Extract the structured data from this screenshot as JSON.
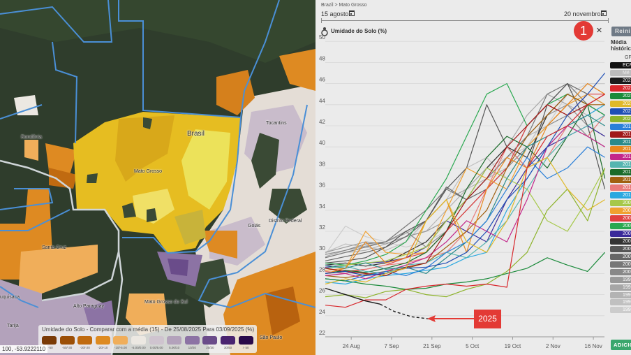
{
  "map": {
    "labels": {
      "brasil": "Brasil",
      "mato_grosso": "Mato Grosso",
      "rondonia": "Rondônia",
      "tocantins": "Tocantins",
      "santa_cruz": "Santa Cruz",
      "goias": "Goiás",
      "distrito_federal": "Distrito Federal",
      "chuquisaca": "uquisaca",
      "alto_paraguay": "Alto Paraguay",
      "mato_grosso_do_sul": "Mato Grosso do Sul",
      "tarija": "Tarija",
      "sao_paulo": "São Paulo"
    },
    "coordinates": "100, -53.9222110",
    "legend": {
      "title": "Umidade do Solo - Comparar com a média (15) - De 25/08/2025 Para 03/09/2025 (%)",
      "classes": [
        {
          "label": "< -50",
          "color": "#7a3a06"
        },
        {
          "label": "-50/-30",
          "color": "#9c4f08"
        },
        {
          "label": "-30/-20",
          "color": "#c06a10"
        },
        {
          "label": "-20/-10",
          "color": "#de8a22"
        },
        {
          "label": "-10/-5.00",
          "color": "#f0ae5a"
        },
        {
          "label": "-5.00/0.00",
          "color": "#ece8e2"
        },
        {
          "label": "0.00/5.00",
          "color": "#cfc4cf"
        },
        {
          "label": "5.00/10",
          "color": "#b3a2bb"
        },
        {
          "label": "10/20",
          "color": "#8c73a4"
        },
        {
          "label": "20/30",
          "color": "#6a4c8a"
        },
        {
          "label": "30/50",
          "color": "#4a2470"
        },
        {
          "label": "> 50",
          "color": "#2a0a4a"
        }
      ]
    }
  },
  "panel": {
    "breadcrumb": "Brazil > Mato Grosso",
    "start_date": "15 agosto",
    "end_date": "20 novembro",
    "chart_title": "Umidade do Solo (%)",
    "annotation_number": "1",
    "close_icon": "×",
    "reset_button": "Reini",
    "historical_label_1": "Média",
    "historical_label_2": "histórica",
    "legend_header": "GF",
    "add_button": "ADICIO",
    "annotation_2025": "2025",
    "legend_items": [
      {
        "label": "ECM",
        "color": "#111111"
      },
      {
        "label": "Mé",
        "color": "#bdbdbd"
      },
      {
        "label": "202",
        "color": "#1b1b1b"
      },
      {
        "label": "202",
        "color": "#d7262b"
      },
      {
        "label": "202",
        "color": "#1a8a3a"
      },
      {
        "label": "202",
        "color": "#e0b92a"
      },
      {
        "label": "202",
        "color": "#1f4fb5"
      },
      {
        "label": "202",
        "color": "#8db32b"
      },
      {
        "label": "201",
        "color": "#2a7fd8"
      },
      {
        "label": "201",
        "color": "#a01818"
      },
      {
        "label": "201",
        "color": "#2a8a8a"
      },
      {
        "label": "201",
        "color": "#e8871e"
      },
      {
        "label": "201",
        "color": "#c3268a"
      },
      {
        "label": "201",
        "color": "#55b5b0"
      },
      {
        "label": "201",
        "color": "#1a6b2a"
      },
      {
        "label": "201",
        "color": "#a06010"
      },
      {
        "label": "201",
        "color": "#e87a7a"
      },
      {
        "label": "201",
        "color": "#2aa8e0"
      },
      {
        "label": "200",
        "color": "#a6c84a"
      },
      {
        "label": "200",
        "color": "#f0a030"
      },
      {
        "label": "200",
        "color": "#e04040"
      },
      {
        "label": "200",
        "color": "#2aa850"
      },
      {
        "label": "200",
        "color": "#3a2a9a"
      },
      {
        "label": "200",
        "color": "#333333"
      },
      {
        "label": "200",
        "color": "#555555"
      },
      {
        "label": "200",
        "color": "#666666"
      },
      {
        "label": "200",
        "color": "#777777"
      },
      {
        "label": "200",
        "color": "#888888"
      },
      {
        "label": "199",
        "color": "#999999"
      },
      {
        "label": "199",
        "color": "#a6a6a6"
      },
      {
        "label": "199",
        "color": "#b3b3b3"
      },
      {
        "label": "199",
        "color": "#c0c0c0"
      },
      {
        "label": "199",
        "color": "#cccccc"
      }
    ]
  },
  "chart_data": {
    "type": "line",
    "title": "Umidade do Solo (%)",
    "xlabel": "",
    "ylabel": "",
    "ylim": [
      22,
      50
    ],
    "yticks": [
      22,
      24,
      26,
      28,
      30,
      32,
      34,
      36,
      38,
      40,
      42,
      44,
      46,
      48,
      50
    ],
    "xlim": [
      "Aug 15",
      "Nov 20"
    ],
    "xticks": [
      {
        "date": "Aug 24",
        "label": "24 Aug"
      },
      {
        "date": "Sep 7",
        "label": "7 Sep"
      },
      {
        "date": "Sep 21",
        "label": "21 Sep"
      },
      {
        "date": "Oct 5",
        "label": "5 Oct"
      },
      {
        "date": "Oct 19",
        "label": "19 Oct"
      },
      {
        "date": "Nov 2",
        "label": "2 Nov"
      },
      {
        "date": "Nov 16",
        "label": "16 Nov"
      }
    ],
    "grid": true,
    "legend_placement": "right",
    "x": [
      "Aug 15",
      "Aug 22",
      "Aug 29",
      "Sep 5",
      "Sep 12",
      "Sep 19",
      "Sep 26",
      "Oct 3",
      "Oct 10",
      "Oct 17",
      "Oct 24",
      "Oct 31",
      "Nov 7",
      "Nov 14",
      "Nov 20"
    ],
    "series": [
      {
        "color": "#cccccc",
        "values": [
          29.8,
          32.5,
          31.5,
          31,
          30.5,
          31,
          32,
          36,
          38,
          39,
          40,
          42,
          45,
          46,
          46
        ]
      },
      {
        "color": "#c0c0c0",
        "values": [
          30,
          30.8,
          30.5,
          30.2,
          31,
          33,
          35,
          38,
          39,
          37,
          40,
          43,
          44,
          46,
          45
        ]
      },
      {
        "color": "#b3b3b3",
        "values": [
          29.5,
          30,
          30.2,
          30.8,
          31.5,
          32,
          34,
          36,
          37,
          38,
          41,
          42,
          44,
          43,
          44
        ]
      },
      {
        "color": "#a6a6a6",
        "values": [
          29.6,
          30.2,
          30.6,
          31,
          31.8,
          33,
          35,
          36,
          38,
          40,
          43,
          45,
          44,
          42,
          43
        ]
      },
      {
        "color": "#999999",
        "values": [
          30,
          30.5,
          31,
          30.8,
          31.5,
          32,
          33,
          35,
          37,
          39,
          41,
          43,
          44,
          42,
          41
        ]
      },
      {
        "color": "#888888",
        "values": [
          29.8,
          30.2,
          30.8,
          31,
          32,
          30.5,
          32,
          34,
          36,
          38,
          40,
          42,
          43,
          41,
          40
        ]
      },
      {
        "color": "#777777",
        "values": [
          29.5,
          30,
          30.5,
          31,
          32.5,
          34,
          36,
          35,
          37,
          39,
          41,
          45,
          46,
          44,
          43
        ]
      },
      {
        "color": "#666666",
        "values": [
          29.2,
          29.6,
          30,
          30.5,
          31.5,
          33,
          36.2,
          35,
          36,
          38,
          42,
          44,
          46,
          45,
          44
        ]
      },
      {
        "color": "#555555",
        "values": [
          29,
          29.2,
          29.5,
          30.5,
          32,
          33,
          36,
          38,
          44,
          40,
          38,
          44,
          46,
          42,
          36
        ]
      },
      {
        "color": "#333333",
        "values": [
          28.8,
          29,
          28.7,
          29,
          30,
          31,
          33,
          35,
          38,
          40,
          39,
          43,
          45,
          44,
          43
        ]
      },
      {
        "color": "#3a2a9a",
        "values": [
          28.6,
          28.8,
          29,
          29.1,
          29.5,
          30.5,
          33,
          32,
          31,
          35,
          38,
          40,
          41,
          42,
          41
        ]
      },
      {
        "color": "#2aa850",
        "values": [
          29,
          28.8,
          29.2,
          29.8,
          31,
          34,
          37,
          41,
          45,
          46,
          42,
          44,
          45,
          44,
          43
        ]
      },
      {
        "color": "#e04040",
        "values": [
          28,
          28.2,
          28.4,
          28.8,
          29.5,
          30,
          32,
          34,
          36,
          38,
          42,
          44,
          43,
          45,
          45
        ]
      },
      {
        "color": "#f0a030",
        "values": [
          28.3,
          28.5,
          32,
          30,
          29.8,
          30,
          34,
          38,
          37,
          36,
          40,
          42,
          44,
          45,
          44
        ]
      },
      {
        "color": "#a6c84a",
        "values": [
          28.5,
          28.8,
          29,
          29.2,
          29.8,
          30.5,
          33,
          35,
          38,
          37,
          36,
          33,
          32,
          35,
          38
        ]
      },
      {
        "color": "#2aa8e0",
        "values": [
          27.2,
          27,
          27.5,
          27.8,
          28,
          28.3,
          28.6,
          29.5,
          30,
          34,
          37,
          40,
          42,
          43,
          44
        ]
      },
      {
        "color": "#e87a7a",
        "values": [
          28.2,
          28,
          28.4,
          28.8,
          29,
          29.5,
          30,
          32,
          36,
          40,
          38,
          39,
          42,
          41,
          43
        ]
      },
      {
        "color": "#a06010",
        "values": [
          27.8,
          27.6,
          27.9,
          28.2,
          28.5,
          29,
          30.5,
          32,
          34,
          38,
          41,
          43,
          45,
          44,
          44
        ]
      },
      {
        "color": "#1a6b2a",
        "values": [
          28,
          28.3,
          28.1,
          28.5,
          29,
          30,
          32,
          36,
          39,
          41,
          40,
          38,
          41,
          44,
          37
        ]
      },
      {
        "color": "#55b5b0",
        "values": [
          28.5,
          28.7,
          28.2,
          28,
          28.8,
          29,
          30,
          29.5,
          31,
          33,
          36,
          39,
          41,
          42,
          43
        ]
      },
      {
        "color": "#c3268a",
        "values": [
          27.8,
          28,
          27.5,
          28.2,
          28.8,
          29.5,
          31,
          33,
          32,
          31,
          35,
          40,
          42,
          41,
          40
        ]
      },
      {
        "color": "#e8871e",
        "values": [
          28,
          28.5,
          31,
          29,
          29.5,
          33,
          35,
          30,
          36,
          39,
          38,
          42,
          44,
          46,
          45
        ]
      },
      {
        "color": "#2a8a8a",
        "values": [
          28.8,
          28.5,
          29,
          28.4,
          28.6,
          28,
          29.5,
          31,
          33,
          37,
          40,
          41,
          42,
          43,
          42
        ]
      },
      {
        "color": "#a01818",
        "values": [
          28.5,
          28.2,
          28,
          27.8,
          28.6,
          29,
          32,
          35,
          37,
          40,
          42,
          44,
          43,
          44,
          45
        ]
      },
      {
        "color": "#2a7fd8",
        "values": [
          27.5,
          27.3,
          27.8,
          28.2,
          27.8,
          28.5,
          30,
          31,
          33,
          36,
          39,
          37,
          38,
          40,
          39
        ]
      },
      {
        "color": "#8db32b",
        "values": [
          25.8,
          26,
          25.7,
          26.3,
          26.5,
          26,
          25.8,
          26.5,
          27,
          28.2,
          30,
          34,
          36,
          33,
          38
        ]
      },
      {
        "color": "#1f4fb5",
        "values": [
          28,
          28.2,
          27.8,
          28,
          28.5,
          28.6,
          29,
          30,
          32,
          35,
          37,
          40,
          43,
          45,
          47
        ]
      },
      {
        "color": "#e0b92a",
        "values": [
          27,
          27.5,
          27.2,
          28,
          28.5,
          33,
          35,
          31,
          30,
          33,
          38,
          39,
          36,
          34,
          35
        ]
      },
      {
        "color": "#1a8a3a",
        "values": [
          27.5,
          27.3,
          27,
          26.8,
          26.5,
          26.6,
          27,
          27.2,
          27.5,
          28,
          28.5,
          29.5,
          28.8,
          28.2,
          30
        ]
      },
      {
        "color": "#d7262b",
        "values": [
          25,
          24.8,
          25.5,
          25.5,
          26.5,
          26.8,
          27,
          26.8,
          27,
          26.7,
          38,
          41,
          42,
          44,
          45
        ]
      }
    ],
    "current_year": {
      "color": "#1b1b1b",
      "x": [
        "Aug 15",
        "Aug 22",
        "Aug 29",
        "Sep 3"
      ],
      "values": [
        26.6,
        26.0,
        25.4,
        25.1
      ]
    },
    "forecast": {
      "color": "#1b1b1b",
      "dashed": true,
      "x": [
        "Sep 3",
        "Sep 8",
        "Sep 14",
        "Sep 20"
      ],
      "values": [
        25.1,
        24.4,
        23.9,
        23.7
      ]
    }
  }
}
